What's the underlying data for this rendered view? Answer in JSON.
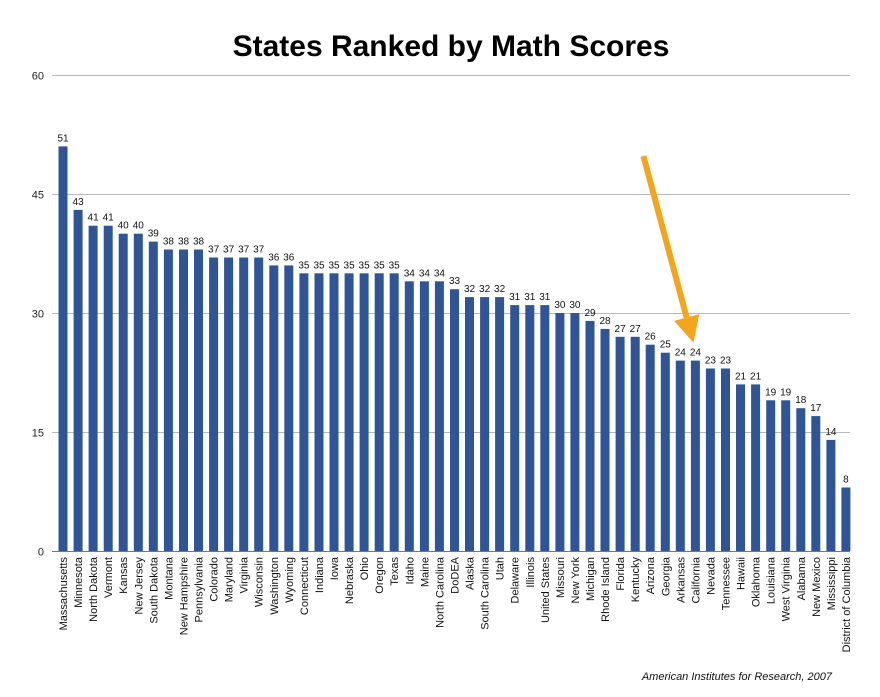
{
  "chart_data": {
    "type": "bar",
    "title": "States Ranked by Math Scores",
    "xlabel": "",
    "ylabel": "",
    "ylim": [
      0,
      60
    ],
    "yticks": [
      0,
      15,
      30,
      45,
      60
    ],
    "grid": true,
    "legend": "none",
    "bar_color": "#2f5597",
    "annotation_color": "#f5a51d",
    "annotation": {
      "type": "arrow",
      "target": "California"
    },
    "categories": [
      "Massachusetts",
      "Minnesota",
      "North Dakota",
      "Vermont",
      "Kansas",
      "New Jersey",
      "South Dakota",
      "Montana",
      "New Hampshire",
      "Pennsylvania",
      "Colorado",
      "Maryland",
      "Virginia",
      "Wisconsin",
      "Washington",
      "Wyoming",
      "Connecticut",
      "Indiana",
      "Iowa",
      "Nebraska",
      "Ohio",
      "Oregon",
      "Texas",
      "Idaho",
      "Maine",
      "North Carolina",
      "DoDEA",
      "Alaska",
      "South Carolina",
      "Utah",
      "Delaware",
      "Illinois",
      "United States",
      "Missouri",
      "New York",
      "Michigan",
      "Rhode Island",
      "Florida",
      "Kentucky",
      "Arizona",
      "Georgia",
      "Arkansas",
      "California",
      "Nevada",
      "Tennessee",
      "Hawaii",
      "Oklahoma",
      "Louisiana",
      "West Virginia",
      "Alabama",
      "New Mexico",
      "Mississippi",
      "District of Columbia"
    ],
    "values": [
      51,
      43,
      41,
      41,
      40,
      40,
      39,
      38,
      38,
      38,
      37,
      37,
      37,
      37,
      36,
      36,
      35,
      35,
      35,
      35,
      35,
      35,
      35,
      34,
      34,
      34,
      33,
      32,
      32,
      32,
      31,
      31,
      31,
      30,
      30,
      29,
      28,
      27,
      27,
      26,
      25,
      24,
      24,
      23,
      23,
      21,
      21,
      19,
      19,
      18,
      17,
      14,
      8
    ],
    "source": "American Institutes for Research, 2007"
  }
}
